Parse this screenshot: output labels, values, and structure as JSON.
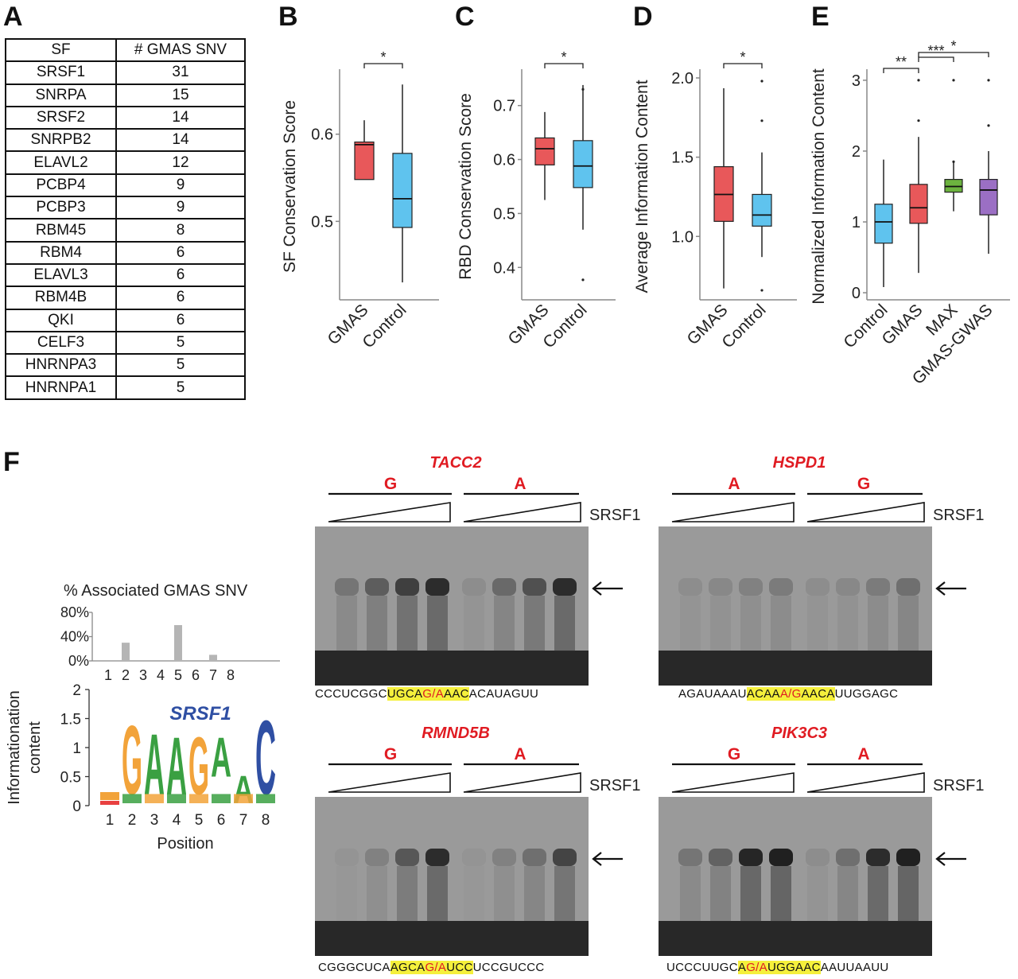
{
  "panels": {
    "a": "A",
    "b": "B",
    "c": "C",
    "d": "D",
    "e": "E",
    "f": "F"
  },
  "table": {
    "headers": [
      "SF",
      "# GMAS SNV"
    ],
    "rows": [
      [
        "SRSF1",
        "31"
      ],
      [
        "SNRPA",
        "15"
      ],
      [
        "SRSF2",
        "14"
      ],
      [
        "SNRPB2",
        "14"
      ],
      [
        "ELAVL2",
        "12"
      ],
      [
        "PCBP4",
        "9"
      ],
      [
        "PCBP3",
        "9"
      ],
      [
        "RBM45",
        "8"
      ],
      [
        "RBM4",
        "6"
      ],
      [
        "ELAVL3",
        "6"
      ],
      [
        "RBM4B",
        "6"
      ],
      [
        "QKI",
        "6"
      ],
      [
        "CELF3",
        "5"
      ],
      [
        "HNRNPA3",
        "5"
      ],
      [
        "HNRNPA1",
        "5"
      ]
    ]
  },
  "colors": {
    "gmas": "#e8585a",
    "control": "#5fc3ee",
    "max": "#6cb33f",
    "gmas_gwas": "#9b6fc4",
    "snv_red": "#e01b22",
    "highlight": "#f5f03c",
    "motif_title": "#2f4fa3"
  },
  "chart_data": [
    {
      "type": "box",
      "panel": "B",
      "ylabel": "SF Conservation Score",
      "yticks": [
        "0.5",
        "0.6"
      ],
      "ylim": [
        0.41,
        0.67
      ],
      "categories": [
        "GMAS",
        "Control"
      ],
      "boxes": [
        {
          "name": "GMAS",
          "min": 0.548,
          "q1": 0.548,
          "median": 0.588,
          "q3": 0.591,
          "max": 0.616,
          "outliers": []
        },
        {
          "name": "Control",
          "min": 0.43,
          "q1": 0.493,
          "median": 0.526,
          "q3": 0.578,
          "max": 0.657,
          "outliers": []
        }
      ],
      "significance": [
        {
          "from": 0,
          "to": 1,
          "label": "*"
        }
      ]
    },
    {
      "type": "box",
      "panel": "C",
      "ylabel": "RBD Conservation Score",
      "yticks": [
        "0.4",
        "0.5",
        "0.6",
        "0.7"
      ],
      "ylim": [
        0.34,
        0.76
      ],
      "categories": [
        "GMAS",
        "Control"
      ],
      "boxes": [
        {
          "name": "GMAS",
          "min": 0.525,
          "q1": 0.59,
          "median": 0.62,
          "q3": 0.64,
          "max": 0.688,
          "outliers": []
        },
        {
          "name": "Control",
          "min": 0.47,
          "q1": 0.548,
          "median": 0.588,
          "q3": 0.635,
          "max": 0.738,
          "outliers": [
            0.73,
            0.377
          ]
        }
      ],
      "significance": [
        {
          "from": 0,
          "to": 1,
          "label": "*"
        }
      ]
    },
    {
      "type": "box",
      "panel": "D",
      "ylabel": "Average Information Content",
      "yticks": [
        "1.0",
        "1.5",
        "2.0"
      ],
      "ylim": [
        0.6,
        2.03
      ],
      "categories": [
        "GMAS",
        "Control"
      ],
      "boxes": [
        {
          "name": "GMAS",
          "min": 0.672,
          "q1": 1.095,
          "median": 1.265,
          "q3": 1.44,
          "max": 1.935,
          "outliers": []
        },
        {
          "name": "Control",
          "min": 0.87,
          "q1": 1.065,
          "median": 1.135,
          "q3": 1.265,
          "max": 1.53,
          "outliers": [
            1.98,
            1.73,
            0.66
          ]
        }
      ],
      "significance": [
        {
          "from": 0,
          "to": 1,
          "label": "*"
        }
      ]
    },
    {
      "type": "box",
      "panel": "E",
      "ylabel": "Normalized Information Content",
      "yticks": [
        "0",
        "1",
        "2",
        "3"
      ],
      "ylim": [
        -0.1,
        3.1
      ],
      "categories": [
        "Control",
        "GMAS",
        "MAX",
        "GMAS-GWAS"
      ],
      "boxes": [
        {
          "name": "Control",
          "min": 0.08,
          "q1": 0.7,
          "median": 1.0,
          "q3": 1.25,
          "max": 1.88,
          "outliers": []
        },
        {
          "name": "GMAS",
          "min": 0.28,
          "q1": 0.98,
          "median": 1.2,
          "q3": 1.53,
          "max": 2.2,
          "outliers": [
            3.0,
            2.43
          ]
        },
        {
          "name": "MAX",
          "min": 1.15,
          "q1": 1.42,
          "median": 1.5,
          "q3": 1.6,
          "max": 1.85,
          "outliers": [
            3.0,
            1.85
          ]
        },
        {
          "name": "GMAS-GWAS",
          "min": 0.55,
          "q1": 1.1,
          "median": 1.45,
          "q3": 1.6,
          "max": 2.0,
          "outliers": [
            3.0,
            2.36
          ]
        }
      ],
      "significance": [
        {
          "from": 0,
          "to": 1,
          "label": "**"
        },
        {
          "from": 1,
          "to": 2,
          "label": "***"
        },
        {
          "from": 1,
          "to": 3,
          "label": "*"
        }
      ]
    },
    {
      "type": "bar",
      "panel": "F",
      "title": "% Associated GMAS SNV",
      "categories": [
        "1",
        "2",
        "3",
        "4",
        "5",
        "6",
        "7",
        "8"
      ],
      "values": [
        0,
        30,
        0,
        0,
        59,
        0,
        10,
        0
      ],
      "yticks": [
        "0%",
        "40%",
        "80%"
      ],
      "ylim": [
        0,
        80
      ]
    }
  ],
  "motif": {
    "title": "SRSF1",
    "xlabel": "Position",
    "ylabel_1": "Informationation",
    "ylabel_2": "content",
    "yticks": [
      "0",
      "0.5",
      "1",
      "1.5",
      "2"
    ],
    "positions": [
      "1",
      "2",
      "3",
      "4",
      "5",
      "6",
      "7",
      "8"
    ],
    "letters": [
      "G",
      "A",
      "A",
      "G",
      "A",
      "A",
      "C"
    ]
  },
  "gels": [
    {
      "gene": "TACC2",
      "allele_left": "G",
      "allele_right": "A",
      "protein": "SRSF1",
      "seq_pre": "CCCUCGGC",
      "seq_hl_pre": "UGCA",
      "seq_snv": "G/A",
      "seq_hl_post": "AAC",
      "seq_post": "ACAUAGUU"
    },
    {
      "gene": "HSPD1",
      "allele_left": "A",
      "allele_right": "G",
      "protein": "SRSF1",
      "seq_pre": "AGAUAAAU",
      "seq_hl_pre": "ACAA",
      "seq_snv": "A/G",
      "seq_hl_post": "AACA",
      "seq_post": "UUGGAGC"
    },
    {
      "gene": "RMND5B",
      "allele_left": "G",
      "allele_right": "A",
      "protein": "SRSF1",
      "seq_pre": "CGGGCUCA",
      "seq_hl_pre": "AGCA",
      "seq_snv": "G/A",
      "seq_hl_post": "UCC",
      "seq_post": "UCCGUCCC"
    },
    {
      "gene": "PIK3C3",
      "allele_left": "G",
      "allele_right": "A",
      "protein": "SRSF1",
      "seq_pre": "UCCCUUGC",
      "seq_hl_pre": "A",
      "seq_snv": "G/A",
      "seq_hl_post": "UGGAAC",
      "seq_post": "AAUUAAUU"
    }
  ]
}
